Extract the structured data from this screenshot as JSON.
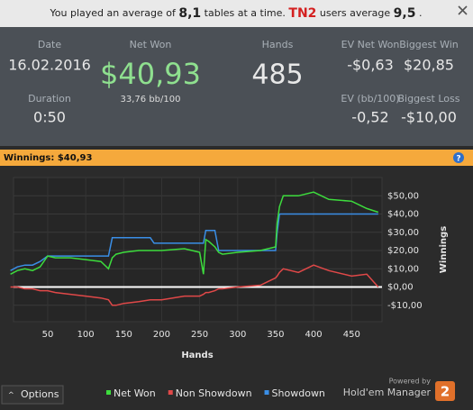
{
  "banner": {
    "text_1": "You played an average of",
    "tables": "8,1",
    "text_2": "tables at a time.",
    "brand": "TN2",
    "text_3": "users average",
    "average": "9,5",
    "text_4": "."
  },
  "stats": {
    "date": {
      "label": "Date",
      "value": "16.02.2016"
    },
    "net_won": {
      "label": "Net Won",
      "value": "$40,93",
      "sub": "33,76 bb/100"
    },
    "hands": {
      "label": "Hands",
      "value": "485"
    },
    "ev_net_won": {
      "label": "EV Net Won",
      "value": "-$0,63"
    },
    "biggest_win": {
      "label": "Biggest Win",
      "value": "$20,85"
    },
    "duration": {
      "label": "Duration",
      "value": "0:50"
    },
    "ev_bb": {
      "label": "EV (bb/100)",
      "value": "-0,52"
    },
    "biggest_loss": {
      "label": "Biggest Loss",
      "value": "-$10,00"
    }
  },
  "header_bar": {
    "title": "Winnings: $40,93",
    "help": "?"
  },
  "footer": {
    "options": "Options",
    "powered_by": "Powered by",
    "brand": "Hold'em Manager",
    "version": "2"
  },
  "chart_data": {
    "type": "line",
    "xlabel": "Hands",
    "ylabel": "Winnings",
    "x": [
      1,
      10,
      20,
      30,
      40,
      50,
      60,
      80,
      100,
      120,
      130,
      135,
      140,
      150,
      170,
      185,
      190,
      200,
      230,
      250,
      255,
      258,
      262,
      270,
      275,
      280,
      300,
      330,
      340,
      350,
      352,
      355,
      360,
      380,
      400,
      420,
      450,
      470,
      485
    ],
    "series": [
      {
        "name": "Net Won",
        "color": "#3ddc3d",
        "values": [
          7,
          9,
          10,
          9,
          11,
          17,
          16,
          16,
          15,
          14,
          10,
          16,
          18,
          19,
          20,
          20,
          20,
          20,
          21,
          19,
          7,
          26,
          25,
          22,
          19,
          18,
          19,
          20,
          21,
          22,
          35,
          44,
          50,
          50,
          52,
          48,
          47,
          43,
          41
        ]
      },
      {
        "name": "Non Showdown",
        "color": "#e04848",
        "values": [
          0,
          0,
          -1,
          -1,
          -2,
          -2,
          -3,
          -4,
          -5,
          -6,
          -7,
          -10,
          -10,
          -9,
          -8,
          -7,
          -7,
          -7,
          -5,
          -5,
          -4,
          -3,
          -3,
          -2,
          -1,
          -1,
          0,
          1,
          3,
          5,
          6,
          8,
          10,
          8,
          12,
          9,
          6,
          7,
          0
        ]
      },
      {
        "name": "Showdown",
        "color": "#3a8ee6",
        "values": [
          9,
          11,
          12,
          12,
          14,
          17,
          17,
          17,
          17,
          17,
          17,
          27,
          27,
          27,
          27,
          27,
          24,
          24,
          24,
          24,
          24,
          31,
          31,
          31,
          20,
          20,
          20,
          20,
          20,
          20,
          30,
          40,
          40,
          40,
          40,
          40,
          40,
          40,
          40
        ]
      }
    ],
    "xlim": [
      5,
      490
    ],
    "xticks": [
      50,
      100,
      150,
      200,
      250,
      300,
      350,
      400,
      450
    ],
    "ylim": [
      -19,
      60
    ],
    "yticks": [
      {
        "value": 50,
        "label": "$50,00"
      },
      {
        "value": 40,
        "label": "$40,00"
      },
      {
        "value": 30,
        "label": "$30,00"
      },
      {
        "value": 20,
        "label": "$20,00"
      },
      {
        "value": 10,
        "label": "$10,00"
      },
      {
        "value": 0,
        "label": "$0,00"
      },
      {
        "value": -10,
        "label": "-$10,00"
      }
    ],
    "grid": true
  }
}
